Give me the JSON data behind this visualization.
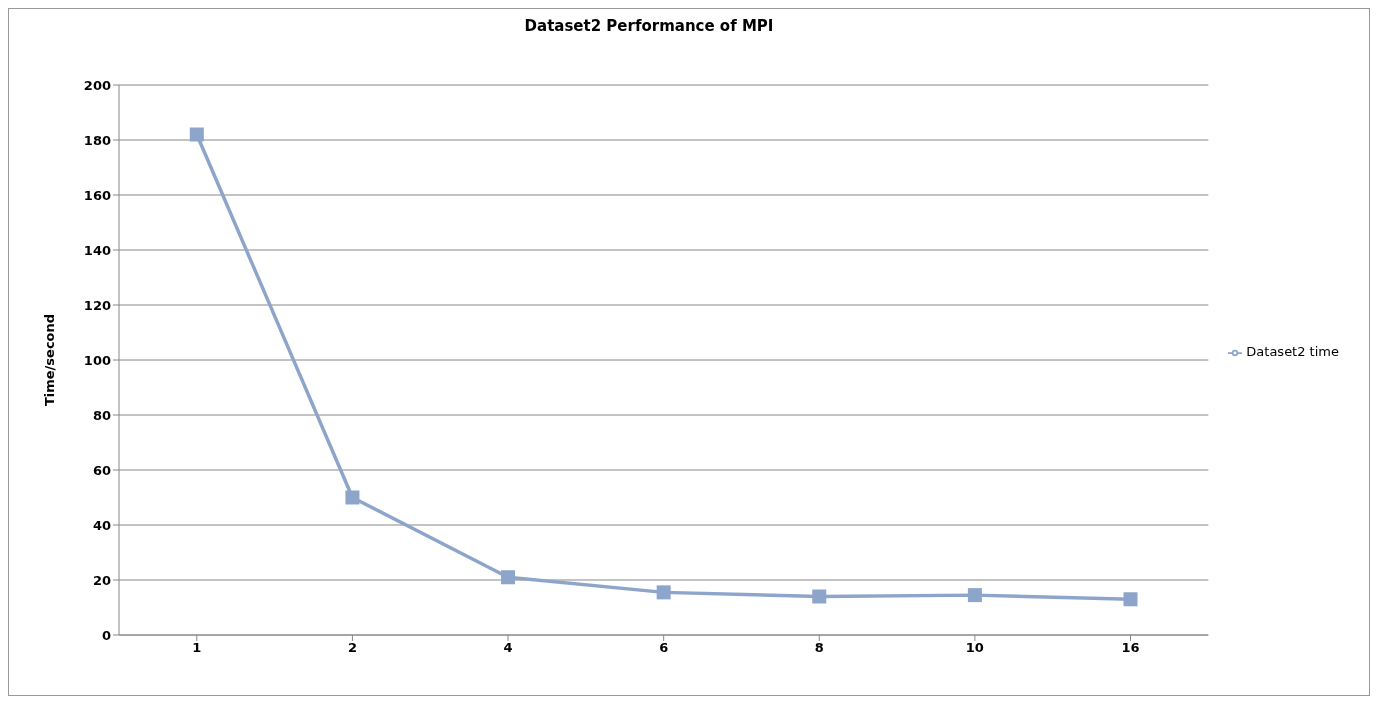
{
  "chart_data": {
    "type": "line",
    "title": "Dataset2 Performance of MPI",
    "ylabel": "Time/second",
    "categories": [
      "1",
      "2",
      "4",
      "6",
      "8",
      "10",
      "16"
    ],
    "series": [
      {
        "name": "Dataset2 time",
        "color": "#8ea5cb",
        "values": [
          182,
          50,
          21,
          15.5,
          14,
          14.5,
          13
        ]
      }
    ],
    "ylim": [
      0,
      200
    ],
    "yticks": [
      0,
      20,
      40,
      60,
      80,
      100,
      120,
      140,
      160,
      180,
      200
    ],
    "grid": "y",
    "legend": "right",
    "marker": "square",
    "line_style": "solid"
  }
}
